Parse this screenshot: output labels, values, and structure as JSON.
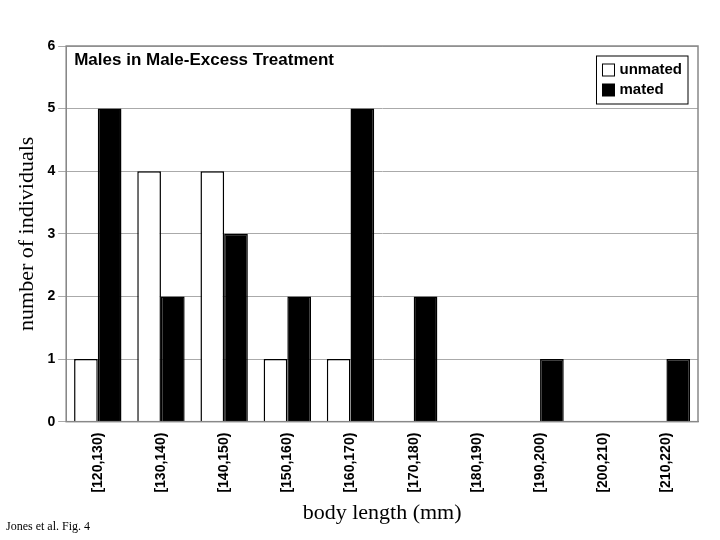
{
  "chart_data": {
    "type": "bar",
    "title": "Males in Male-Excess Treatment",
    "x_label": "body length (mm)",
    "y_label": "number of individuals",
    "annotation": "Jones et al. Fig. 4",
    "categories": [
      "[120,130)",
      "[130,140)",
      "[140,150)",
      "[150,160)",
      "[160,170)",
      "[170,180)",
      "[180,190)",
      "[190,200)",
      "[200,210)",
      "[210,220)"
    ],
    "series": [
      {
        "name": "unmated",
        "color": "#ffffff",
        "values": [
          1,
          4,
          4,
          1,
          1,
          0,
          0,
          0,
          0,
          0
        ]
      },
      {
        "name": "mated",
        "color": "#000000",
        "values": [
          5,
          2,
          3,
          2,
          5,
          2,
          0,
          1,
          0,
          1
        ]
      }
    ],
    "ylim": [
      0,
      6
    ],
    "yticks": [
      0,
      1,
      2,
      3,
      4,
      5,
      6
    ],
    "grid": true,
    "legend": "upper right"
  }
}
